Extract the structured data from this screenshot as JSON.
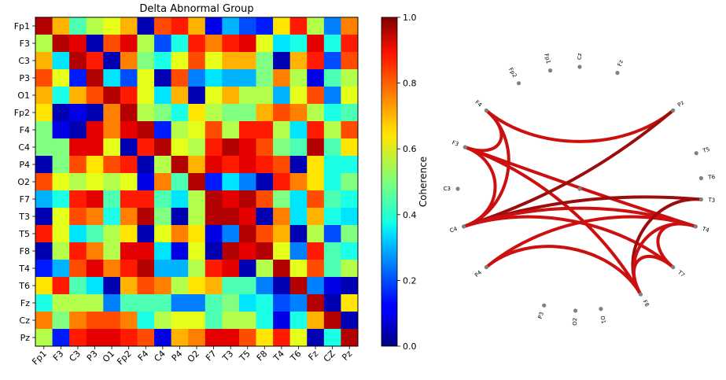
{
  "chart_data": [
    {
      "type": "heatmap",
      "title": "Delta Abnormal Group",
      "rows": [
        "Fp1",
        "F3",
        "C3",
        "P3",
        "O1",
        "Fp2",
        "F4",
        "C4",
        "P4",
        "O2",
        "F7",
        "T3",
        "T5",
        "F8",
        "T4",
        "T6",
        "Fz",
        "Cz",
        "Pz"
      ],
      "columns": [
        "Fp1",
        "F3",
        "C3",
        "P3",
        "O1",
        "Fp2",
        "F4",
        "C4",
        "P4",
        "O2",
        "F7",
        "T3",
        "T5",
        "F8",
        "T4",
        "T6",
        "Fz",
        "CZ",
        "Pz"
      ],
      "values": [
        [
          0.95,
          0.7,
          0.45,
          0.55,
          0.6,
          0.7,
          0.05,
          0.8,
          0.85,
          0.7,
          0.1,
          0.3,
          0.2,
          0.15,
          0.65,
          0.85,
          0.55,
          0.25,
          0.75
        ],
        [
          0.55,
          0.95,
          0.9,
          0.05,
          0.8,
          0.9,
          0.55,
          0.2,
          0.4,
          0.85,
          0.75,
          0.85,
          0.9,
          0.6,
          0.35,
          0.4,
          0.9,
          0.4,
          0.85
        ],
        [
          0.7,
          0.35,
          0.95,
          0.85,
          0.05,
          0.75,
          0.5,
          0.4,
          0.6,
          0.8,
          0.6,
          0.7,
          0.7,
          0.5,
          0.05,
          0.7,
          0.85,
          0.2,
          0.8
        ],
        [
          0.8,
          0.6,
          0.15,
          0.95,
          0.35,
          0.2,
          0.6,
          0.05,
          0.8,
          0.25,
          0.35,
          0.3,
          0.3,
          0.5,
          0.75,
          0.55,
          0.1,
          0.45,
          0.55
        ],
        [
          0.7,
          0.4,
          0.7,
          0.8,
          0.95,
          0.85,
          0.6,
          0.35,
          0.7,
          0.05,
          0.6,
          0.7,
          0.55,
          0.55,
          0.3,
          0.6,
          0.8,
          0.25,
          0.6
        ],
        [
          0.65,
          0.05,
          0.1,
          0.05,
          0.75,
          0.95,
          0.55,
          0.5,
          0.4,
          0.65,
          0.55,
          0.5,
          0.5,
          0.7,
          0.8,
          0.75,
          0.55,
          0.4,
          0.45
        ],
        [
          0.5,
          0.1,
          0.05,
          0.9,
          0.75,
          0.9,
          0.95,
          0.15,
          0.55,
          0.6,
          0.8,
          0.55,
          0.85,
          0.85,
          0.55,
          0.35,
          0.85,
          0.55,
          0.8
        ],
        [
          0.5,
          0.5,
          0.9,
          0.9,
          0.6,
          0.05,
          0.85,
          0.95,
          0.6,
          0.55,
          0.85,
          0.95,
          0.9,
          0.8,
          0.5,
          0.45,
          0.95,
          0.45,
          0.65
        ],
        [
          0.05,
          0.5,
          0.8,
          0.65,
          0.8,
          0.85,
          0.05,
          0.55,
          0.95,
          0.7,
          0.9,
          0.85,
          0.9,
          0.85,
          0.8,
          0.05,
          0.65,
          0.4,
          0.4
        ],
        [
          0.8,
          0.6,
          0.55,
          0.6,
          0.55,
          0.6,
          0.1,
          0.75,
          0.45,
          0.95,
          0.15,
          0.35,
          0.25,
          0.05,
          0.85,
          0.75,
          0.65,
          0.4,
          0.5
        ],
        [
          0.3,
          0.4,
          0.85,
          0.9,
          0.45,
          0.85,
          0.85,
          0.45,
          0.35,
          0.55,
          0.95,
          0.9,
          0.95,
          0.8,
          0.5,
          0.35,
          0.8,
          0.45,
          0.4
        ],
        [
          0.05,
          0.6,
          0.8,
          0.75,
          0.4,
          0.75,
          0.95,
          0.5,
          0.05,
          0.55,
          0.95,
          0.95,
          0.9,
          0.05,
          0.75,
          0.35,
          0.7,
          0.4,
          0.35
        ],
        [
          0.85,
          0.6,
          0.35,
          0.45,
          0.55,
          0.65,
          0.05,
          0.6,
          0.75,
          0.65,
          0.1,
          0.25,
          0.95,
          0.8,
          0.7,
          0.05,
          0.55,
          0.2,
          0.5
        ],
        [
          0.05,
          0.55,
          0.85,
          0.75,
          0.55,
          0.9,
          0.9,
          0.35,
          0.1,
          0.6,
          0.05,
          0.95,
          0.9,
          0.95,
          0.6,
          0.25,
          0.85,
          0.45,
          0.4
        ],
        [
          0.15,
          0.3,
          0.8,
          0.9,
          0.75,
          0.85,
          0.95,
          0.3,
          0.3,
          0.55,
          0.85,
          0.9,
          0.05,
          0.55,
          0.95,
          0.6,
          0.8,
          0.45,
          0.55
        ],
        [
          0.65,
          0.85,
          0.45,
          0.35,
          0.05,
          0.7,
          0.8,
          0.75,
          0.55,
          0.65,
          0.7,
          0.45,
          0.45,
          0.25,
          0.05,
          0.95,
          0.25,
          0.1,
          0.05
        ],
        [
          0.4,
          0.55,
          0.55,
          0.55,
          0.25,
          0.45,
          0.45,
          0.45,
          0.25,
          0.25,
          0.45,
          0.5,
          0.35,
          0.4,
          0.2,
          0.25,
          0.95,
          0.05,
          0.65
        ],
        [
          0.75,
          0.5,
          0.75,
          0.8,
          0.8,
          0.75,
          0.4,
          0.55,
          0.6,
          0.6,
          0.45,
          0.55,
          0.55,
          0.4,
          0.1,
          0.4,
          0.7,
          0.95,
          0.05
        ],
        [
          0.55,
          0.15,
          0.85,
          0.9,
          0.9,
          0.85,
          0.8,
          0.1,
          0.7,
          0.75,
          0.9,
          0.9,
          0.8,
          0.65,
          0.85,
          0.6,
          0.05,
          0.4,
          0.95
        ]
      ],
      "colorbar": {
        "label": "Coherence",
        "range": [
          0.0,
          1.0
        ],
        "ticks": [
          "0.0",
          "0.2",
          "0.4",
          "0.6",
          "0.8",
          "1.0"
        ],
        "colormap": "jet"
      }
    },
    {
      "type": "circular-connectivity",
      "nodes": [
        "Pz",
        "T5",
        "T6",
        "T3",
        "T4",
        "T7",
        "F8",
        "O1",
        "O2",
        "P3",
        "P4",
        "C4",
        "C3",
        "F3",
        "F4",
        "Fp2",
        "Fp1",
        "Cz",
        "Fz"
      ],
      "connections": [
        {
          "from": "F4",
          "to": "F3",
          "strength": 0.9
        },
        {
          "from": "F4",
          "to": "C4",
          "strength": 0.9
        },
        {
          "from": "F4",
          "to": "Pz",
          "strength": 0.85
        },
        {
          "from": "F3",
          "to": "C4",
          "strength": 0.9
        },
        {
          "from": "F3",
          "to": "T4",
          "strength": 0.88
        },
        {
          "from": "F3",
          "to": "F8",
          "strength": 0.88
        },
        {
          "from": "C4",
          "to": "Pz",
          "strength": 0.95
        },
        {
          "from": "C4",
          "to": "T3",
          "strength": 0.95
        },
        {
          "from": "C4",
          "to": "T4",
          "strength": 0.9
        },
        {
          "from": "C4",
          "to": "T7",
          "strength": 0.88
        },
        {
          "from": "P4",
          "to": "T4",
          "strength": 0.9
        },
        {
          "from": "P4",
          "to": "F8",
          "strength": 0.88
        },
        {
          "from": "T3",
          "to": "F8",
          "strength": 0.95
        },
        {
          "from": "T4",
          "to": "F8",
          "strength": 0.9
        },
        {
          "from": "T4",
          "to": "T7",
          "strength": 0.88
        },
        {
          "from": "T7",
          "to": "F8",
          "strength": 0.9
        }
      ],
      "node_color": "#808080",
      "center_node": true
    }
  ]
}
